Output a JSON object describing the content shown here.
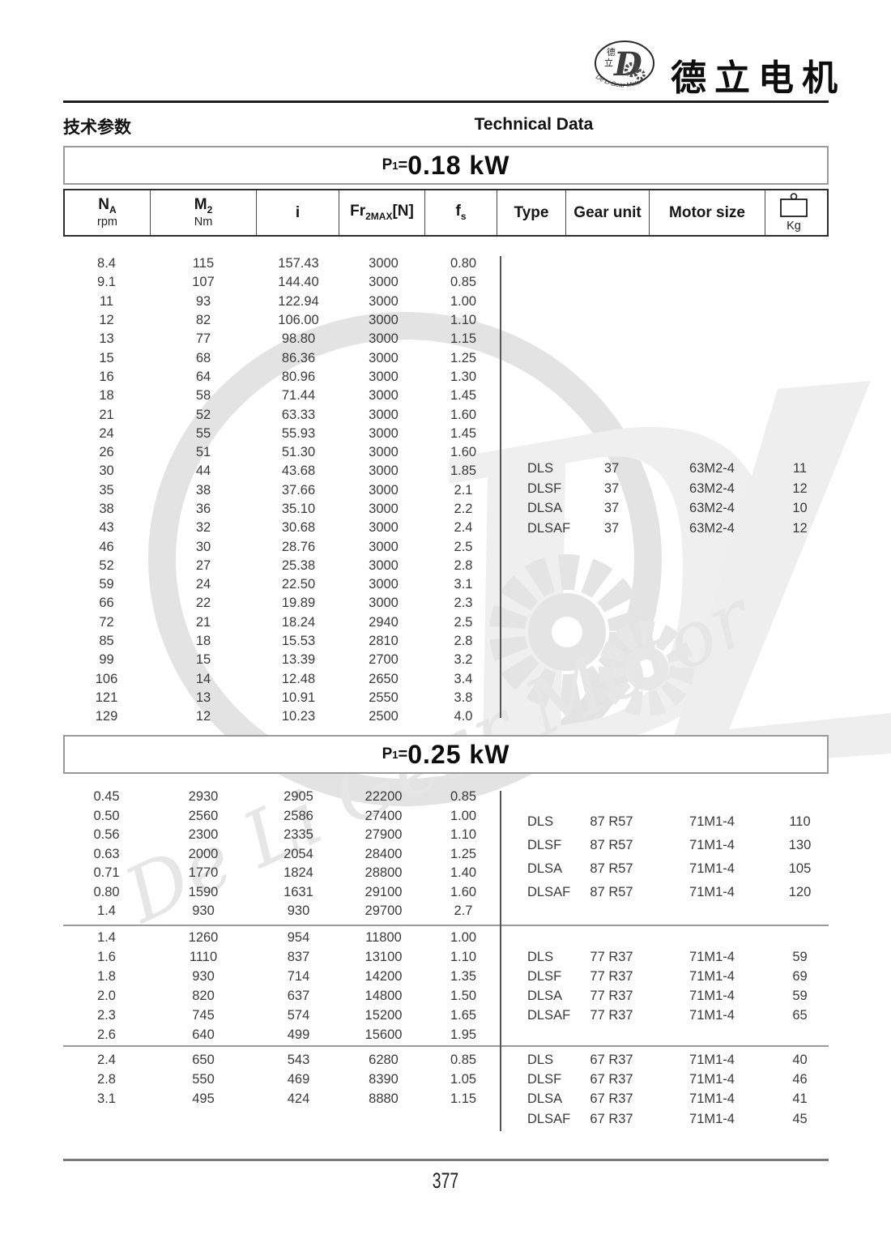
{
  "page_header": {
    "brand_name": "德立电机",
    "logo_char_top": "德",
    "logo_char_bottom": "立",
    "logo_monogram": "D",
    "logo_ring_text": "De Li Gear Motor",
    "doc_title_cn": "技术参数",
    "doc_title_en": "Technical Data"
  },
  "columns": {
    "na": {
      "sym": "N",
      "sub": "A",
      "unit": "rpm"
    },
    "m2": {
      "sym": "M",
      "sub": "2",
      "unit": "Nm"
    },
    "i": {
      "sym": "i"
    },
    "fr": {
      "sym": "Fr",
      "sub": "2MAX",
      "post": "[N]"
    },
    "fs": {
      "sym": "f",
      "sub": "s"
    },
    "type": "Type",
    "gear": "Gear unit",
    "motor": "Motor size",
    "kg": "Kg"
  },
  "watermark": {
    "text": "De Li Gear Motor",
    "monogram": "D"
  },
  "footer": {
    "page_number": "377"
  },
  "sections": [
    {
      "power": {
        "p": "P",
        "sub": "1",
        "eq": "=",
        "value": "0.18 kW"
      },
      "blocks": [
        {
          "rows": [
            [
              "8.4",
              "115",
              "157.43",
              "3000",
              "0.80"
            ],
            [
              "9.1",
              "107",
              "144.40",
              "3000",
              "0.85"
            ],
            [
              "11",
              "93",
              "122.94",
              "3000",
              "1.00"
            ],
            [
              "12",
              "82",
              "106.00",
              "3000",
              "1.10"
            ],
            [
              "13",
              "77",
              "98.80",
              "3000",
              "1.15"
            ],
            [
              "15",
              "68",
              "86.36",
              "3000",
              "1.25"
            ],
            [
              "16",
              "64",
              "80.96",
              "3000",
              "1.30"
            ],
            [
              "18",
              "58",
              "71.44",
              "3000",
              "1.45"
            ],
            [
              "21",
              "52",
              "63.33",
              "3000",
              "1.60"
            ],
            [
              "24",
              "55",
              "55.93",
              "3000",
              "1.45"
            ],
            [
              "26",
              "51",
              "51.30",
              "3000",
              "1.60"
            ],
            [
              "30",
              "44",
              "43.68",
              "3000",
              "1.85"
            ],
            [
              "35",
              "38",
              "37.66",
              "3000",
              "2.1"
            ],
            [
              "38",
              "36",
              "35.10",
              "3000",
              "2.2"
            ],
            [
              "43",
              "32",
              "30.68",
              "3000",
              "2.4"
            ],
            [
              "46",
              "30",
              "28.76",
              "3000",
              "2.5"
            ],
            [
              "52",
              "27",
              "25.38",
              "3000",
              "2.8"
            ],
            [
              "59",
              "24",
              "22.50",
              "3000",
              "3.1"
            ],
            [
              "66",
              "22",
              "19.89",
              "3000",
              "2.3"
            ],
            [
              "72",
              "21",
              "18.24",
              "2940",
              "2.5"
            ],
            [
              "85",
              "18",
              "15.53",
              "2810",
              "2.8"
            ],
            [
              "99",
              "15",
              "13.39",
              "2700",
              "3.2"
            ],
            [
              "106",
              "14",
              "12.48",
              "2650",
              "3.4"
            ],
            [
              "121",
              "13",
              "10.91",
              "2550",
              "3.8"
            ],
            [
              "129",
              "12",
              "10.23",
              "2500",
              "4.0"
            ]
          ],
          "types": [
            [
              "DLS",
              "37",
              "63M2-4",
              "11"
            ],
            [
              "DLSF",
              "37",
              "63M2-4",
              "12"
            ],
            [
              "DLSA",
              "37",
              "63M2-4",
              "10"
            ],
            [
              "DLSAF",
              "37",
              "63M2-4",
              "12"
            ]
          ]
        }
      ]
    },
    {
      "power": {
        "p": "P",
        "sub": "1",
        "eq": "=",
        "value": "0.25 kW"
      },
      "blocks": [
        {
          "rows": [
            [
              "0.45",
              "2930",
              "2905",
              "22200",
              "0.85"
            ],
            [
              "0.50",
              "2560",
              "2586",
              "27400",
              "1.00"
            ],
            [
              "0.56",
              "2300",
              "2335",
              "27900",
              "1.10"
            ],
            [
              "0.63",
              "2000",
              "2054",
              "28400",
              "1.25"
            ],
            [
              "0.71",
              "1770",
              "1824",
              "28800",
              "1.40"
            ],
            [
              "0.80",
              "1590",
              "1631",
              "29100",
              "1.60"
            ],
            [
              "1.4",
              "930",
              "930",
              "29700",
              "2.7"
            ]
          ],
          "types": [
            [
              "DLS",
              "87 R57",
              "71M1-4",
              "110"
            ],
            [
              "DLSF",
              "87 R57",
              "71M1-4",
              "130"
            ],
            [
              "DLSA",
              "87 R57",
              "71M1-4",
              "105"
            ],
            [
              "DLSAF",
              "87 R57",
              "71M1-4",
              "120"
            ]
          ]
        },
        {
          "rows": [
            [
              "1.4",
              "1260",
              "954",
              "11800",
              "1.00"
            ],
            [
              "1.6",
              "1110",
              "837",
              "13100",
              "1.10"
            ],
            [
              "1.8",
              "930",
              "714",
              "14200",
              "1.35"
            ],
            [
              "2.0",
              "820",
              "637",
              "14800",
              "1.50"
            ],
            [
              "2.3",
              "745",
              "574",
              "15200",
              "1.65"
            ],
            [
              "2.6",
              "640",
              "499",
              "15600",
              "1.95"
            ]
          ],
          "types": [
            [
              "DLS",
              "77 R37",
              "71M1-4",
              "59"
            ],
            [
              "DLSF",
              "77 R37",
              "71M1-4",
              "69"
            ],
            [
              "DLSA",
              "77 R37",
              "71M1-4",
              "59"
            ],
            [
              "DLSAF",
              "77 R37",
              "71M1-4",
              "65"
            ]
          ]
        },
        {
          "rows": [
            [
              "2.4",
              "650",
              "543",
              "6280",
              "0.85"
            ],
            [
              "2.8",
              "550",
              "469",
              "8390",
              "1.05"
            ],
            [
              "3.1",
              "495",
              "424",
              "8880",
              "1.15"
            ]
          ],
          "types": [
            [
              "DLS",
              "67 R37",
              "71M1-4",
              "40"
            ],
            [
              "DLSF",
              "67 R37",
              "71M1-4",
              "46"
            ],
            [
              "DLSA",
              "67 R37",
              "71M1-4",
              "41"
            ],
            [
              "DLSAF",
              "67 R37",
              "71M1-4",
              "45"
            ]
          ]
        }
      ]
    }
  ]
}
